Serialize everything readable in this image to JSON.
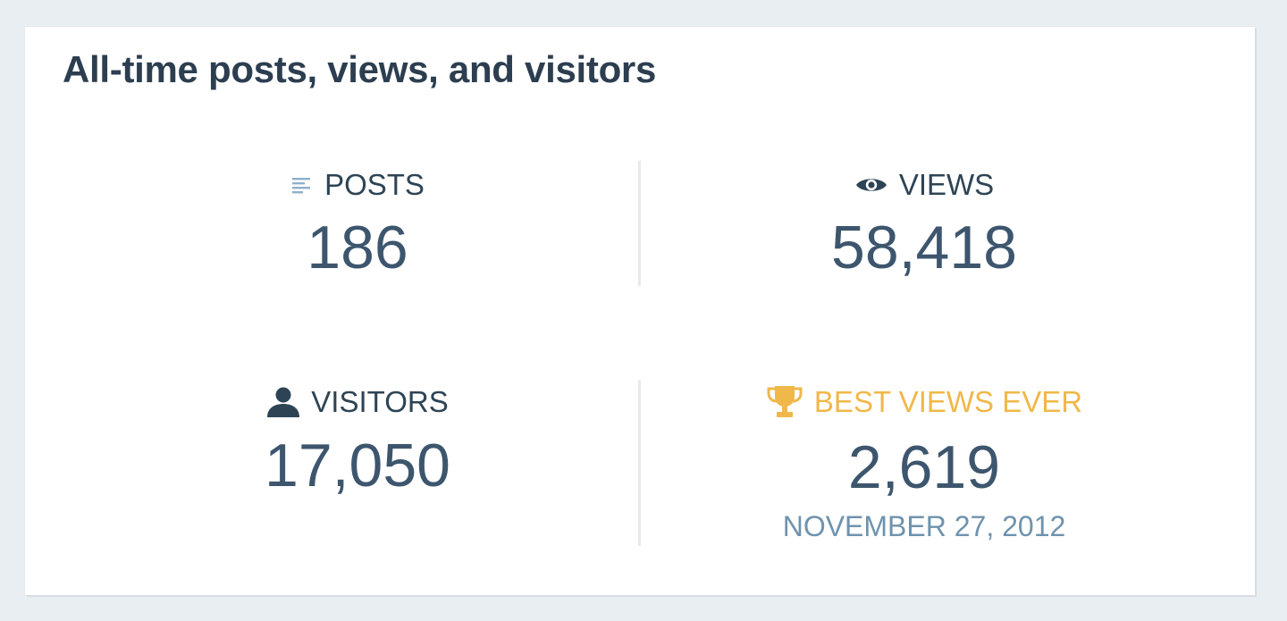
{
  "card": {
    "title": "All-time posts, views, and visitors"
  },
  "stats": {
    "posts": {
      "label": "POSTS",
      "value": "186",
      "icon": "posts-icon"
    },
    "views": {
      "label": "VIEWS",
      "value": "58,418",
      "icon": "eye-icon"
    },
    "visitors": {
      "label": "VISITORS",
      "value": "17,050",
      "icon": "person-icon"
    },
    "best": {
      "label": "BEST VIEWS EVER",
      "value": "2,619",
      "date": "NOVEMBER 27, 2012",
      "icon": "trophy-icon"
    }
  },
  "colors": {
    "title": "#2c3e50",
    "value": "#3d566e",
    "label": "#2e4455",
    "accent_gold": "#f0b849",
    "date": "#6f93ad",
    "background": "#e9eef2"
  }
}
